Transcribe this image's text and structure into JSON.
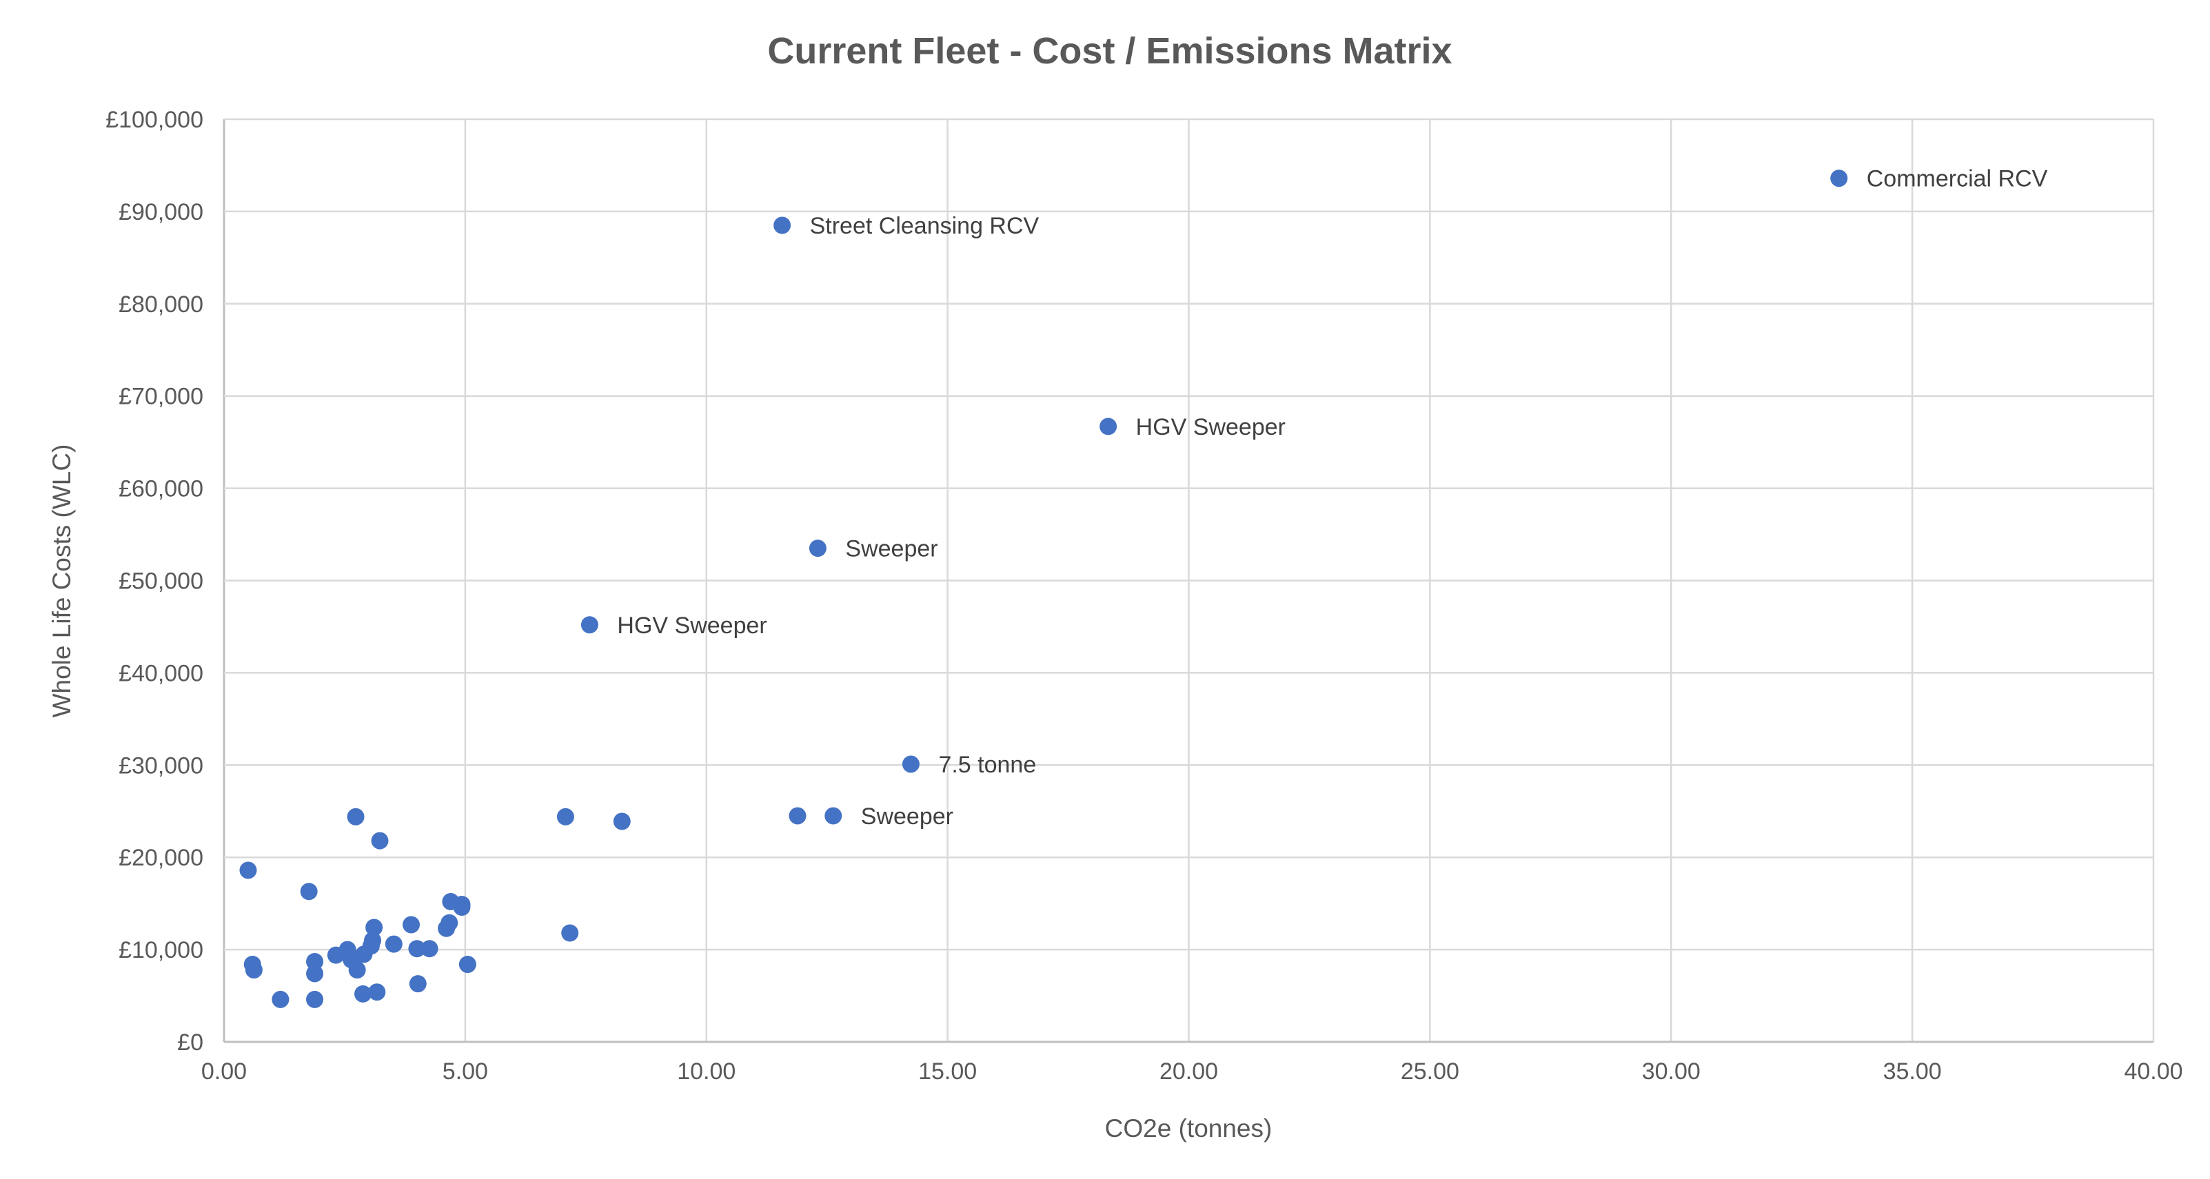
{
  "chart_data": {
    "type": "scatter",
    "title": "Current Fleet - Cost / Emissions Matrix",
    "xlabel": "CO2e (tonnes)",
    "ylabel": "Whole Life Costs (WLC)",
    "xlim": [
      0,
      40
    ],
    "ylim": [
      0,
      100000
    ],
    "x_ticks": [
      "0.00",
      "5.00",
      "10.00",
      "15.00",
      "20.00",
      "25.00",
      "30.00",
      "35.00",
      "40.00"
    ],
    "y_ticks": [
      "£0",
      "£10,000",
      "£20,000",
      "£30,000",
      "£40,000",
      "£50,000",
      "£60,000",
      "£70,000",
      "£80,000",
      "£90,000",
      "£100,000"
    ],
    "grid": true,
    "legend": "none",
    "marker_color": "#4472C4",
    "points": [
      {
        "x": 0.5,
        "y": 18600
      },
      {
        "x": 0.59,
        "y": 8400
      },
      {
        "x": 0.62,
        "y": 7800
      },
      {
        "x": 1.17,
        "y": 4600
      },
      {
        "x": 1.76,
        "y": 16300
      },
      {
        "x": 1.88,
        "y": 8700
      },
      {
        "x": 1.88,
        "y": 7400
      },
      {
        "x": 1.88,
        "y": 4600
      },
      {
        "x": 2.32,
        "y": 9400
      },
      {
        "x": 2.56,
        "y": 10000
      },
      {
        "x": 2.73,
        "y": 24400
      },
      {
        "x": 2.64,
        "y": 8900
      },
      {
        "x": 2.76,
        "y": 7800
      },
      {
        "x": 2.88,
        "y": 5200
      },
      {
        "x": 2.9,
        "y": 9500
      },
      {
        "x": 3.11,
        "y": 12400
      },
      {
        "x": 3.08,
        "y": 11000
      },
      {
        "x": 3.05,
        "y": 10400
      },
      {
        "x": 3.17,
        "y": 5400
      },
      {
        "x": 3.23,
        "y": 21800
      },
      {
        "x": 3.52,
        "y": 10600
      },
      {
        "x": 3.88,
        "y": 12700
      },
      {
        "x": 4.0,
        "y": 10100
      },
      {
        "x": 4.02,
        "y": 6300
      },
      {
        "x": 4.26,
        "y": 10100
      },
      {
        "x": 4.61,
        "y": 12300
      },
      {
        "x": 4.67,
        "y": 12900
      },
      {
        "x": 4.7,
        "y": 15200
      },
      {
        "x": 4.93,
        "y": 14900
      },
      {
        "x": 4.93,
        "y": 14600
      },
      {
        "x": 5.05,
        "y": 8400
      },
      {
        "x": 7.08,
        "y": 24400
      },
      {
        "x": 7.17,
        "y": 11800
      },
      {
        "x": 8.25,
        "y": 23900
      },
      {
        "x": 7.58,
        "y": 45200,
        "label": "HGV Sweeper"
      },
      {
        "x": 11.57,
        "y": 88500,
        "label": "Street Cleansing RCV"
      },
      {
        "x": 12.31,
        "y": 53500,
        "label": "Sweeper"
      },
      {
        "x": 11.89,
        "y": 24500
      },
      {
        "x": 12.63,
        "y": 24500,
        "label": "Sweeper"
      },
      {
        "x": 14.24,
        "y": 30100,
        "label": "7.5 tonne"
      },
      {
        "x": 18.33,
        "y": 66700,
        "label": "HGV Sweeper"
      },
      {
        "x": 33.48,
        "y": 93600,
        "label": "Commercial RCV"
      }
    ]
  }
}
